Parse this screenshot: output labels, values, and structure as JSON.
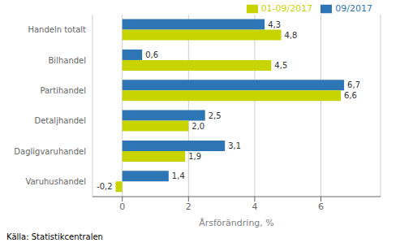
{
  "chart_data": {
    "type": "bar",
    "orientation": "horizontal",
    "categories": [
      "Handeln totalt",
      "Bilhandel",
      "Partihandel",
      "Detaljhandel",
      "Dagligvaruhandel",
      "Varuhushandel"
    ],
    "series": [
      {
        "name": "09/2017",
        "color": "#2E75B6",
        "values": [
          4.3,
          0.6,
          6.7,
          2.5,
          3.1,
          1.4
        ],
        "value_labels": [
          "4,3",
          "0,6",
          "6,7",
          "2,5",
          "3,1",
          "1,4"
        ]
      },
      {
        "name": "01-09/2017",
        "color": "#C8D400",
        "values": [
          4.8,
          4.5,
          6.6,
          2.0,
          1.9,
          -0.2
        ],
        "value_labels": [
          "4,8",
          "4,5",
          "6,6",
          "2,0",
          "1,9",
          "-0,2"
        ]
      }
    ],
    "xlabel": "Årsförändring, %",
    "xlim": [
      -0.9,
      7.8
    ],
    "xticks": [
      0,
      2,
      4,
      6
    ],
    "grid": true,
    "legend": "upper right",
    "data_labels": true,
    "annotations": [
      "Källa: Statistikcentralen"
    ]
  }
}
